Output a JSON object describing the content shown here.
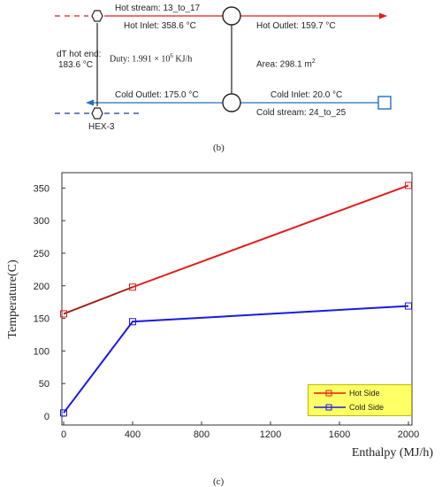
{
  "colors": {
    "hot": "#e31b1b",
    "cold": "#1f6fbf",
    "cold_line": "#1a1ae6",
    "legend_bg": "#ffff66",
    "hot_line": "#e31b1b",
    "hot_line_dark": "#7a2a1a"
  },
  "hex_diagram": {
    "hot_stream": "Hot stream: 13_to_17",
    "hot_inlet": "Hot Inlet: 358.6 °C",
    "hot_outlet": "Hot Outlet: 159.7 °C",
    "dT_hot_end_line1": "dT hot end:",
    "dT_hot_end_line2": "183.6 °C",
    "duty_prefix": "Duty: 1.991 × 10",
    "duty_exp": "6",
    "duty_suffix": " KJ/h",
    "area_prefix": "Area: 298.1 m",
    "area_exp": "2",
    "cold_outlet": "Cold Outlet: 175.0 °C",
    "cold_inlet": "Cold Inlet: 20.0 °C",
    "cold_stream": "Cold stream: 24_to_25",
    "hex_label": "HEX-3",
    "caption": "(b)"
  },
  "chart_caption": "(c)",
  "chart_data": {
    "type": "line",
    "ylabel": "Temperature(C)",
    "xlabel": "Enthalpy  (MJ/h)",
    "xlim": [
      0,
      2000
    ],
    "ylim": [
      0,
      360
    ],
    "x_ticks": [
      0,
      400,
      800,
      1200,
      1600,
      2000
    ],
    "y_ticks": [
      0,
      50,
      100,
      150,
      200,
      250,
      300,
      350
    ],
    "grid": false,
    "legend_position": "bottom-right",
    "series": [
      {
        "name": "Hot Side",
        "x": [
          0,
          400,
          2000
        ],
        "y": [
          157,
          198,
          354
        ]
      },
      {
        "name": "Cold Side",
        "x": [
          0,
          400,
          2000
        ],
        "y": [
          5,
          145,
          169
        ]
      }
    ]
  }
}
